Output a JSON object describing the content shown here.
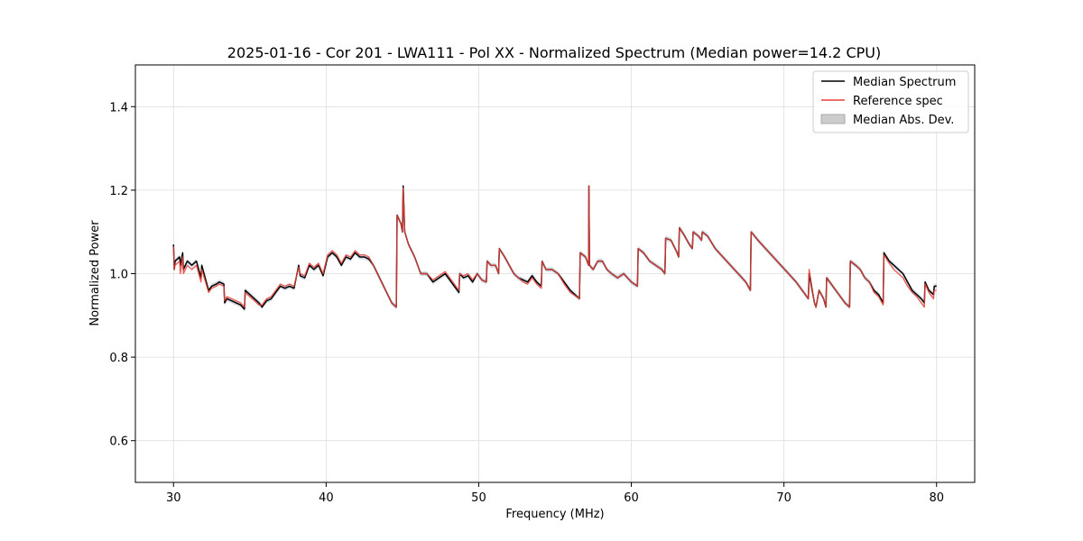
{
  "chart_data": {
    "type": "line",
    "title": "2025-01-16 - Cor 201 - LWA111 - Pol XX - Normalized Spectrum (Median power=14.2 CPU)",
    "xlabel": "Frequency (MHz)",
    "ylabel": "Normalized Power",
    "xlim": [
      27.5,
      82.5
    ],
    "ylim": [
      0.5,
      1.5
    ],
    "xticks": [
      30,
      40,
      50,
      60,
      70,
      80
    ],
    "yticks": [
      0.6,
      0.8,
      1.0,
      1.2,
      1.4
    ],
    "xtick_labels": [
      "30",
      "40",
      "50",
      "60",
      "70",
      "80"
    ],
    "ytick_labels": [
      "0.6",
      "0.8",
      "1.0",
      "1.2",
      "1.4"
    ],
    "grid": true,
    "legend_position": "top-right",
    "legend": [
      "Median Spectrum",
      "Reference spec",
      "Median Abs. Dev."
    ],
    "colors": {
      "median": "#000000",
      "reference": "#e8413a",
      "mad": "#aaaaaa",
      "grid": "#dddddd"
    },
    "series": [
      {
        "name": "Median Spectrum",
        "x": [
          30.0,
          30.05,
          30.1,
          30.4,
          30.45,
          30.6,
          30.65,
          30.9,
          31.2,
          31.5,
          31.8,
          31.85,
          32.3,
          32.5,
          32.8,
          33.0,
          33.3,
          33.35,
          33.5,
          33.8,
          34.1,
          34.4,
          34.65,
          34.7,
          35.0,
          35.3,
          35.6,
          35.8,
          36.1,
          36.4,
          36.7,
          37.0,
          37.3,
          37.6,
          37.9,
          38.2,
          38.3,
          38.6,
          38.9,
          39.2,
          39.5,
          39.8,
          40.1,
          40.4,
          40.7,
          41.0,
          41.3,
          41.6,
          41.9,
          42.2,
          42.5,
          42.8,
          43.1,
          43.5,
          43.9,
          44.3,
          44.6,
          44.65,
          44.9,
          45.0,
          45.05,
          45.15,
          45.4,
          45.8,
          46.2,
          46.6,
          47.0,
          47.4,
          47.8,
          48.1,
          48.4,
          48.7,
          48.75,
          49.0,
          49.3,
          49.6,
          49.9,
          50.2,
          50.5,
          50.55,
          50.8,
          51.1,
          51.3,
          51.35,
          51.7,
          52.0,
          52.3,
          52.6,
          52.9,
          53.2,
          53.5,
          53.8,
          54.1,
          54.15,
          54.4,
          54.8,
          55.2,
          55.6,
          56.0,
          56.6,
          56.65,
          57.0,
          57.2,
          57.22,
          57.26,
          57.5,
          57.8,
          58.1,
          58.4,
          58.7,
          59.1,
          59.5,
          60.0,
          60.4,
          60.45,
          60.8,
          61.2,
          61.6,
          62.0,
          62.2,
          62.25,
          62.6,
          63.0,
          63.1,
          63.15,
          63.5,
          63.8,
          64.0,
          64.05,
          64.4,
          64.6,
          64.65,
          65.0,
          65.5,
          66.0,
          66.5,
          67.0,
          67.5,
          67.8,
          67.85,
          68.3,
          68.8,
          69.3,
          69.8,
          70.3,
          70.8,
          71.2,
          71.6,
          71.65,
          72.0,
          72.1,
          72.3,
          72.6,
          72.75,
          72.8,
          73.2,
          73.6,
          74.0,
          74.3,
          74.35,
          74.7,
          75.0,
          75.3,
          75.6,
          75.9,
          76.2,
          76.5,
          76.55,
          76.9,
          77.2,
          77.5,
          77.8,
          78.1,
          78.4,
          78.7,
          79.0,
          79.2,
          79.25,
          79.5,
          79.8,
          79.85,
          80.0
        ],
        "values": [
          1.07,
          1.01,
          1.03,
          1.04,
          1.02,
          1.05,
          1.01,
          1.03,
          1.02,
          1.03,
          0.99,
          1.02,
          0.96,
          0.97,
          0.975,
          0.98,
          0.975,
          0.93,
          0.94,
          0.935,
          0.93,
          0.925,
          0.915,
          0.96,
          0.95,
          0.94,
          0.93,
          0.92,
          0.935,
          0.94,
          0.955,
          0.97,
          0.965,
          0.97,
          0.965,
          1.02,
          0.995,
          0.99,
          1.02,
          1.01,
          1.02,
          0.995,
          1.04,
          1.05,
          1.04,
          1.02,
          1.04,
          1.035,
          1.05,
          1.04,
          1.04,
          1.035,
          1.02,
          0.99,
          0.96,
          0.93,
          0.92,
          1.14,
          1.12,
          1.1,
          1.21,
          1.1,
          1.07,
          1.04,
          1.0,
          1.0,
          0.98,
          0.99,
          1.0,
          0.985,
          0.97,
          0.955,
          1.0,
          0.99,
          0.995,
          0.98,
          1.0,
          0.985,
          0.98,
          1.03,
          1.02,
          1.02,
          1.0,
          1.06,
          1.04,
          1.02,
          1.0,
          0.99,
          0.985,
          0.98,
          0.995,
          0.98,
          0.97,
          1.03,
          1.01,
          1.01,
          1.0,
          0.98,
          0.96,
          0.94,
          1.05,
          1.04,
          1.02,
          1.21,
          1.02,
          1.01,
          1.03,
          1.03,
          1.01,
          1.0,
          0.99,
          1.0,
          0.98,
          0.97,
          1.06,
          1.05,
          1.03,
          1.02,
          1.01,
          1.0,
          1.085,
          1.08,
          1.05,
          1.04,
          1.11,
          1.09,
          1.07,
          1.06,
          1.1,
          1.09,
          1.08,
          1.1,
          1.09,
          1.06,
          1.04,
          1.02,
          1.0,
          0.98,
          0.96,
          1.1,
          1.08,
          1.06,
          1.04,
          1.02,
          1.0,
          0.98,
          0.96,
          0.94,
          1.0,
          0.93,
          0.92,
          0.96,
          0.94,
          0.92,
          0.99,
          0.97,
          0.95,
          0.93,
          0.92,
          1.03,
          1.02,
          1.01,
          0.99,
          0.98,
          0.96,
          0.95,
          0.93,
          1.05,
          1.03,
          1.02,
          1.01,
          1.0,
          0.98,
          0.96,
          0.95,
          0.94,
          0.93,
          0.98,
          0.96,
          0.95,
          0.97,
          0.97
        ]
      },
      {
        "name": "Reference spec",
        "x": [
          30.0,
          30.05,
          30.1,
          30.4,
          30.45,
          30.6,
          30.65,
          30.9,
          31.2,
          31.5,
          31.8,
          31.85,
          32.3,
          32.5,
          32.8,
          33.0,
          33.3,
          33.35,
          33.5,
          33.8,
          34.1,
          34.4,
          34.65,
          34.7,
          35.0,
          35.3,
          35.6,
          35.8,
          36.1,
          36.4,
          36.7,
          37.0,
          37.3,
          37.6,
          37.9,
          38.2,
          38.3,
          38.6,
          38.9,
          39.2,
          39.5,
          39.8,
          40.1,
          40.4,
          40.7,
          41.0,
          41.3,
          41.6,
          41.9,
          42.2,
          42.5,
          42.8,
          43.1,
          43.5,
          43.9,
          44.3,
          44.6,
          44.65,
          44.9,
          45.0,
          45.05,
          45.15,
          45.4,
          45.8,
          46.2,
          46.6,
          47.0,
          47.4,
          47.8,
          48.1,
          48.4,
          48.7,
          48.75,
          49.0,
          49.3,
          49.6,
          49.9,
          50.2,
          50.5,
          50.55,
          50.8,
          51.1,
          51.3,
          51.35,
          51.7,
          52.0,
          52.3,
          52.6,
          52.9,
          53.2,
          53.5,
          53.8,
          54.1,
          54.15,
          54.4,
          54.8,
          55.2,
          55.6,
          56.0,
          56.6,
          56.65,
          57.0,
          57.2,
          57.22,
          57.26,
          57.5,
          57.8,
          58.1,
          58.4,
          58.7,
          59.1,
          59.5,
          60.0,
          60.4,
          60.45,
          60.8,
          61.2,
          61.6,
          62.0,
          62.2,
          62.25,
          62.6,
          63.0,
          63.1,
          63.15,
          63.5,
          63.8,
          64.0,
          64.05,
          64.4,
          64.6,
          64.65,
          65.0,
          65.5,
          66.0,
          66.5,
          67.0,
          67.5,
          67.8,
          67.85,
          68.3,
          68.8,
          69.3,
          69.8,
          70.3,
          70.8,
          71.2,
          71.6,
          71.65,
          72.0,
          72.1,
          72.3,
          72.6,
          72.75,
          72.8,
          73.2,
          73.6,
          74.0,
          74.3,
          74.35,
          74.7,
          75.0,
          75.3,
          75.6,
          75.9,
          76.2,
          76.5,
          76.55,
          76.9,
          77.2,
          77.5,
          77.8,
          78.1,
          78.4,
          78.7,
          79.0,
          79.2,
          79.25,
          79.5,
          79.8,
          79.85,
          80.0
        ],
        "values": [
          1.065,
          1.01,
          1.02,
          1.03,
          1.0,
          1.04,
          1.0,
          1.02,
          1.01,
          1.02,
          0.98,
          1.01,
          0.955,
          0.965,
          0.97,
          0.975,
          0.97,
          0.935,
          0.945,
          0.94,
          0.935,
          0.93,
          0.92,
          0.955,
          0.945,
          0.935,
          0.925,
          0.925,
          0.94,
          0.945,
          0.96,
          0.975,
          0.97,
          0.975,
          0.97,
          1.015,
          1.0,
          0.995,
          1.025,
          1.015,
          1.025,
          1.0,
          1.045,
          1.055,
          1.045,
          1.025,
          1.045,
          1.04,
          1.055,
          1.045,
          1.045,
          1.04,
          1.02,
          0.99,
          0.96,
          0.93,
          0.92,
          1.14,
          1.12,
          1.1,
          1.205,
          1.1,
          1.07,
          1.04,
          1.0,
          1.0,
          0.985,
          0.995,
          1.005,
          0.99,
          0.975,
          0.96,
          1.0,
          0.995,
          1.0,
          0.985,
          1.0,
          0.985,
          0.98,
          1.03,
          1.02,
          1.02,
          1.0,
          1.06,
          1.04,
          1.02,
          1.0,
          0.99,
          0.98,
          0.975,
          0.99,
          0.975,
          0.965,
          1.03,
          1.01,
          1.01,
          1.0,
          0.975,
          0.955,
          0.94,
          1.05,
          1.04,
          1.02,
          1.21,
          1.02,
          1.01,
          1.03,
          1.03,
          1.01,
          1.0,
          0.99,
          1.0,
          0.98,
          0.97,
          1.06,
          1.05,
          1.03,
          1.02,
          1.01,
          1.0,
          1.085,
          1.08,
          1.05,
          1.04,
          1.11,
          1.09,
          1.07,
          1.06,
          1.1,
          1.09,
          1.08,
          1.1,
          1.09,
          1.06,
          1.04,
          1.02,
          1.0,
          0.98,
          0.96,
          1.1,
          1.08,
          1.06,
          1.04,
          1.02,
          1.0,
          0.98,
          0.96,
          0.94,
          1.01,
          0.93,
          0.92,
          0.96,
          0.94,
          0.92,
          0.99,
          0.97,
          0.95,
          0.93,
          0.92,
          1.03,
          1.02,
          1.01,
          0.99,
          0.98,
          0.955,
          0.945,
          0.925,
          1.045,
          1.025,
          1.01,
          1.0,
          0.99,
          0.97,
          0.955,
          0.945,
          0.93,
          0.92,
          0.975,
          0.955,
          0.94,
          0.96,
          0.96
        ]
      }
    ],
    "mad_halfwidth": 0.006
  }
}
